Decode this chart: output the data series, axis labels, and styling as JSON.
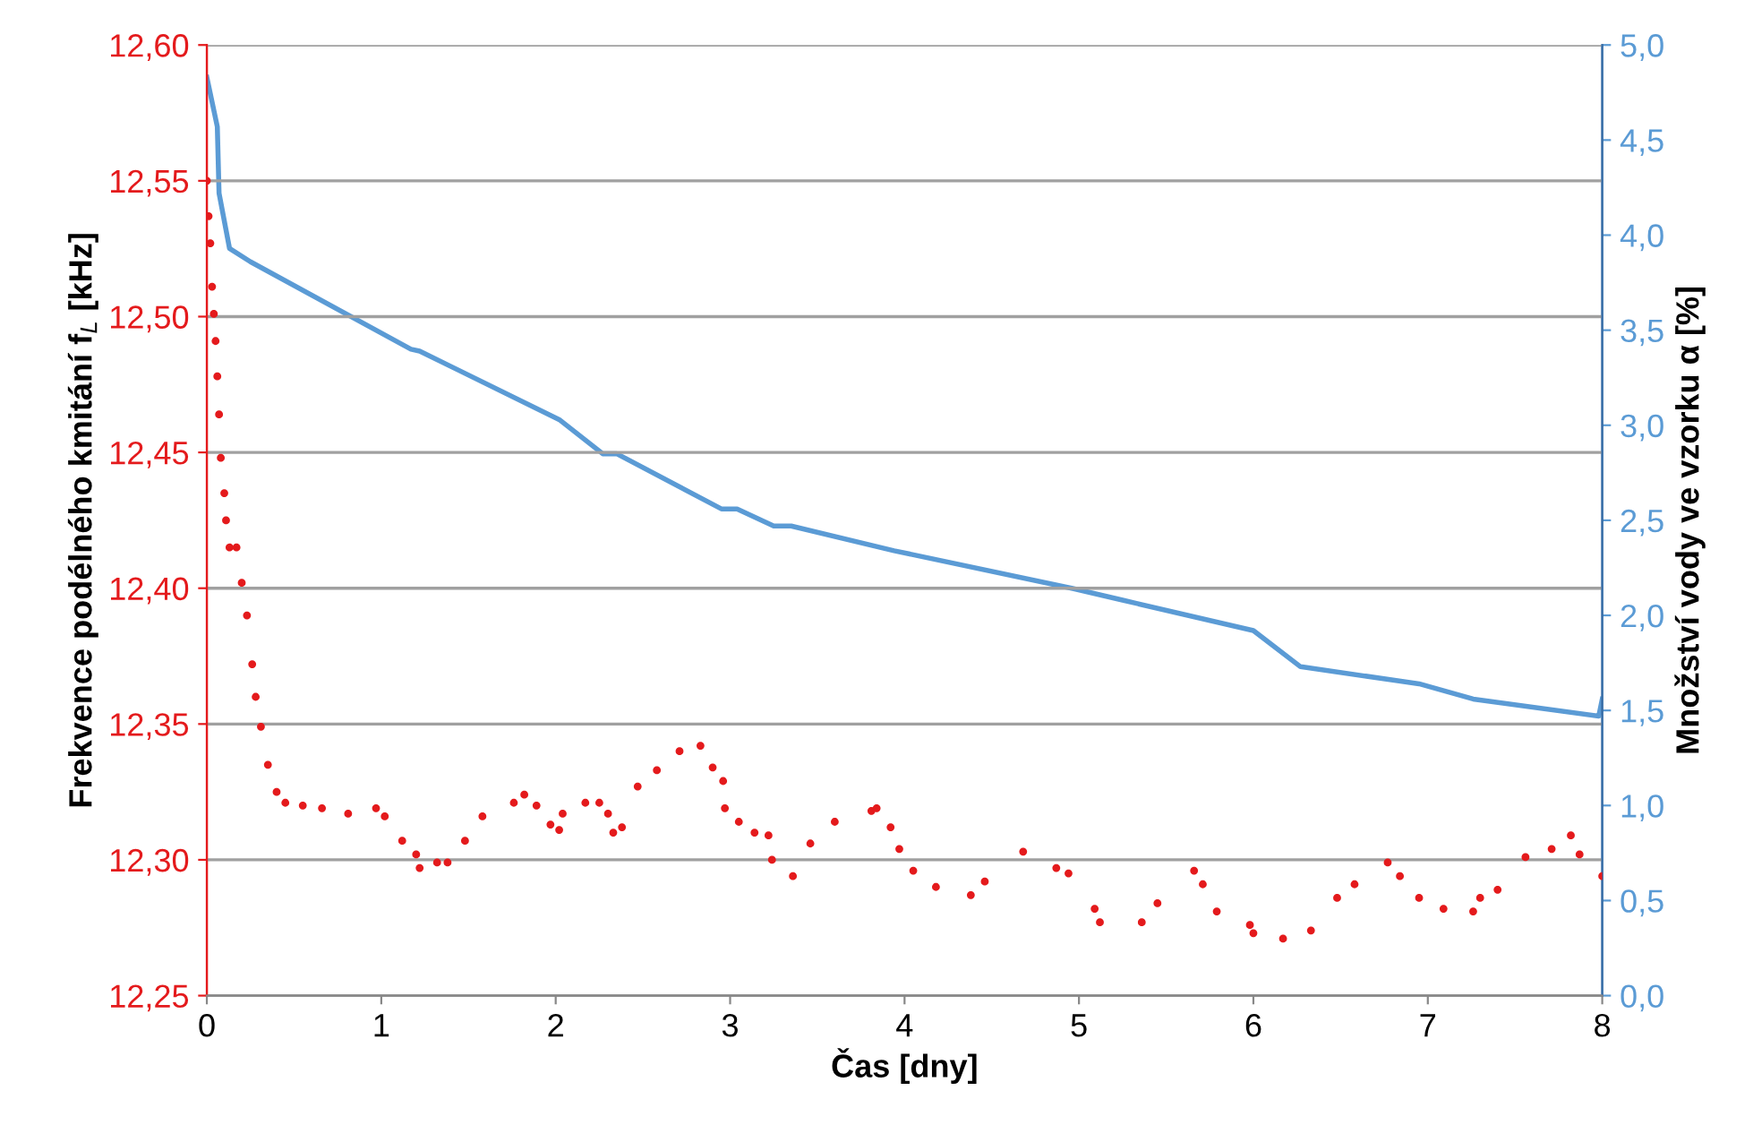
{
  "chart_data": {
    "type": "scatter",
    "xlabel": "Čas [dny]",
    "ylabel": "Frekvence podélného kmitání f$_{L}$ [kHz]",
    "y2label": "Množství vody ve vzorku α [%]",
    "xlim": [
      0,
      8
    ],
    "xticks": [
      0,
      1,
      2,
      3,
      4,
      5,
      6,
      7,
      8
    ],
    "ylim": [
      12.25,
      12.6
    ],
    "yticks": [
      {
        "value": 12.25,
        "label": "12,25"
      },
      {
        "value": 12.3,
        "label": "12,30"
      },
      {
        "value": 12.35,
        "label": "12,35"
      },
      {
        "value": 12.4,
        "label": "12,40"
      },
      {
        "value": 12.45,
        "label": "12,45"
      },
      {
        "value": 12.5,
        "label": "12,50"
      },
      {
        "value": 12.55,
        "label": "12,55"
      },
      {
        "value": 12.6,
        "label": "12,60"
      }
    ],
    "y2lim": [
      0,
      5
    ],
    "y2ticks": [
      {
        "value": 0,
        "label": "0,0"
      },
      {
        "value": 0.5,
        "label": "0,5"
      },
      {
        "value": 1,
        "label": "1,0"
      },
      {
        "value": 1.5,
        "label": "1,5"
      },
      {
        "value": 2,
        "label": "2,0"
      },
      {
        "value": 2.5,
        "label": "2,5"
      },
      {
        "value": 3,
        "label": "3,0"
      },
      {
        "value": 3.5,
        "label": "3,5"
      },
      {
        "value": 4,
        "label": "4,0"
      },
      {
        "value": 4.5,
        "label": "4,5"
      },
      {
        "value": 5,
        "label": "5,0"
      }
    ],
    "grid": "y",
    "legend": false,
    "series": [
      {
        "marker": "circle",
        "color": "#e41a1c",
        "x": [
          0.0,
          0.01,
          0.02,
          0.03,
          0.04,
          0.05,
          0.06,
          0.07,
          0.08,
          0.1,
          0.11,
          0.13,
          0.17,
          0.2,
          0.23,
          0.26,
          0.28,
          0.31,
          0.35,
          0.4,
          0.45,
          0.55,
          0.66,
          0.81,
          0.97,
          1.02,
          1.12,
          1.2,
          1.22,
          1.32,
          1.38,
          1.48,
          1.58,
          1.76,
          1.82,
          1.89,
          1.97,
          2.02,
          2.04,
          2.17,
          2.25,
          2.3,
          2.33,
          2.38,
          2.47,
          2.58,
          2.71,
          2.83,
          2.9,
          2.96,
          2.97,
          3.05,
          3.14,
          3.22,
          3.24,
          3.36,
          3.46,
          3.6,
          3.81,
          3.84,
          3.92,
          3.97,
          4.05,
          4.18,
          4.38,
          4.46,
          4.68,
          4.87,
          4.94,
          5.09,
          5.12,
          5.36,
          5.45,
          5.66,
          5.71,
          5.79,
          5.98,
          6.0,
          6.17,
          6.33,
          6.48,
          6.58,
          6.77,
          6.84,
          6.95,
          7.09,
          7.26,
          7.3,
          7.4,
          7.56,
          7.71,
          7.82,
          7.87,
          8.0
        ],
        "values": [
          12.55,
          12.537,
          12.527,
          12.511,
          12.501,
          12.491,
          12.478,
          12.464,
          12.448,
          12.435,
          12.425,
          12.415,
          12.415,
          12.402,
          12.39,
          12.372,
          12.36,
          12.349,
          12.335,
          12.325,
          12.321,
          12.32,
          12.319,
          12.317,
          12.319,
          12.316,
          12.307,
          12.302,
          12.297,
          12.299,
          12.299,
          12.307,
          12.316,
          12.321,
          12.324,
          12.32,
          12.313,
          12.311,
          12.317,
          12.321,
          12.321,
          12.317,
          12.31,
          12.312,
          12.327,
          12.333,
          12.34,
          12.342,
          12.334,
          12.329,
          12.319,
          12.314,
          12.31,
          12.309,
          12.3,
          12.294,
          12.306,
          12.314,
          12.318,
          12.319,
          12.312,
          12.304,
          12.296,
          12.29,
          12.287,
          12.292,
          12.303,
          12.297,
          12.295,
          12.282,
          12.277,
          12.277,
          12.284,
          12.296,
          12.291,
          12.281,
          12.276,
          12.273,
          12.271,
          12.274,
          12.286,
          12.291,
          12.299,
          12.294,
          12.286,
          12.282,
          12.281,
          12.286,
          12.289,
          12.301,
          12.304,
          12.309,
          12.302,
          12.294
        ]
      },
      {
        "type": "line",
        "axis": "y2",
        "marker": "none",
        "line_style": "solid",
        "color": "#5b9bd5",
        "x": [
          0,
          0.06,
          0.07,
          0.13,
          0.25,
          1.17,
          1.22,
          2.02,
          2.27,
          2.35,
          2.95,
          3.04,
          3.25,
          3.35,
          3.94,
          4.97,
          5.25,
          6.0,
          6.27,
          6.95,
          7.26,
          7.98,
          8.0
        ],
        "values": [
          4.83,
          4.57,
          4.22,
          3.93,
          3.86,
          3.4,
          3.39,
          3.03,
          2.85,
          2.85,
          2.56,
          2.56,
          2.47,
          2.47,
          2.34,
          2.14,
          2.08,
          1.92,
          1.73,
          1.64,
          1.56,
          1.47,
          1.56
        ]
      }
    ]
  }
}
